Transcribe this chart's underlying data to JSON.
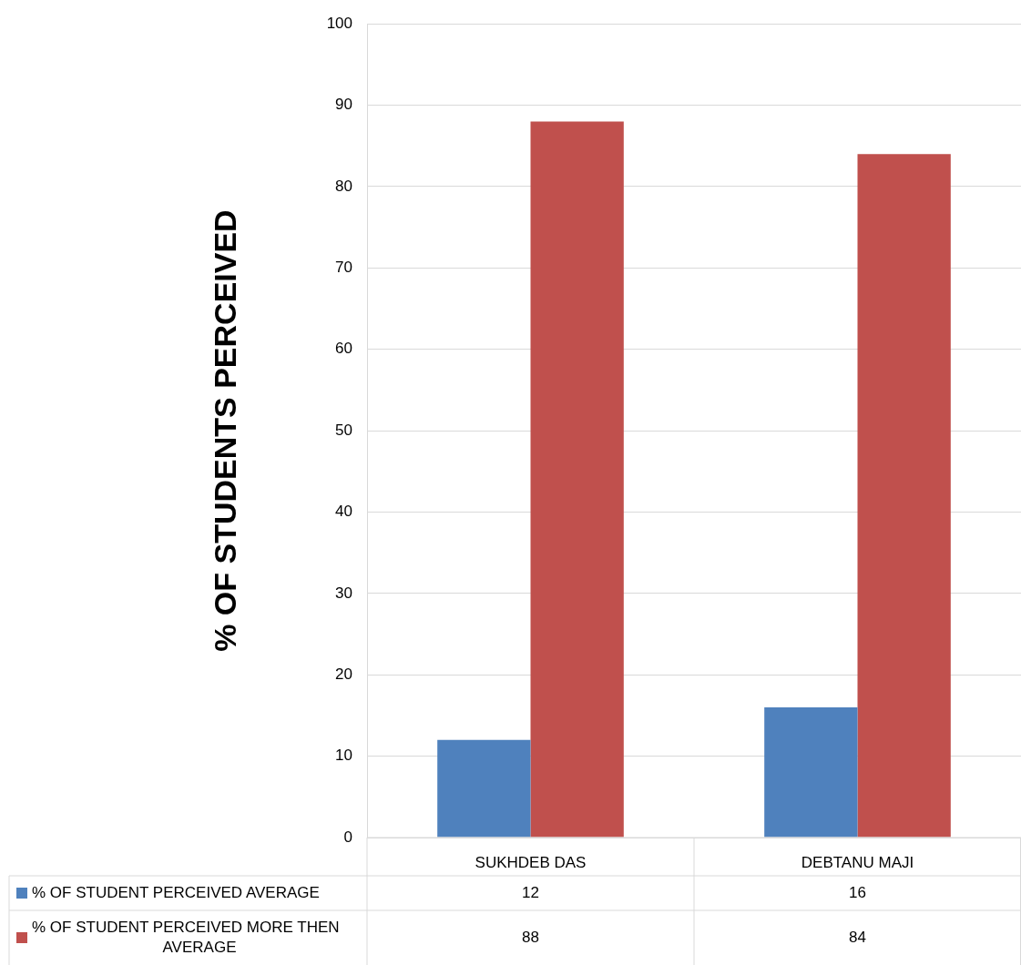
{
  "chart_data": {
    "type": "bar",
    "ylabel": "% OF STUDENTS PERCEIVED",
    "categories": [
      "SUKHDEB DAS",
      "DEBTANU MAJI"
    ],
    "series": [
      {
        "name": "% OF STUDENT PERCEIVED AVERAGE",
        "color": "#4f81bd",
        "values": [
          12,
          16
        ]
      },
      {
        "name": "% OF STUDENT PERCEIVED MORE THEN AVERAGE",
        "color": "#c0504d",
        "values": [
          88,
          84
        ]
      }
    ],
    "ylim": [
      0,
      100
    ],
    "yticks": [
      0,
      10,
      20,
      30,
      40,
      50,
      60,
      70,
      80,
      90,
      100
    ],
    "grid": "y",
    "legend": "bottom",
    "data_labels": true
  }
}
